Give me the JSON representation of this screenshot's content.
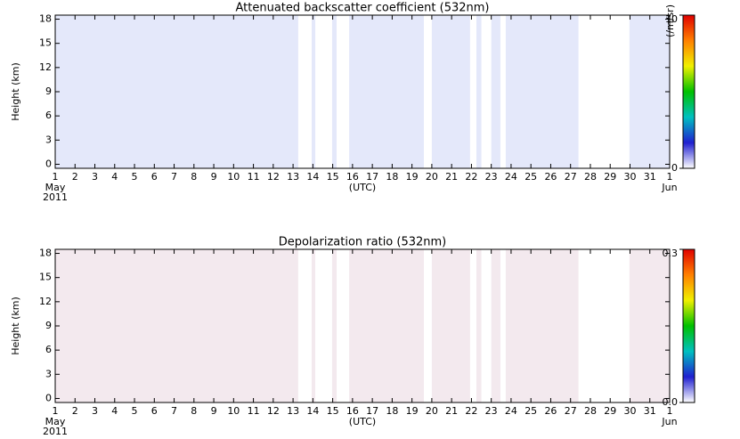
{
  "chart_data": [
    {
      "type": "heatmap",
      "title": "Attenuated backscatter coefficient (532nm)",
      "ylabel": "Height (km)",
      "xlabel": "(UTC)",
      "start_month": "May",
      "start_year": "2011",
      "end_month": "Jun",
      "xlim": [
        1,
        32
      ],
      "xticks": [
        1,
        2,
        3,
        4,
        5,
        6,
        7,
        8,
        9,
        10,
        11,
        12,
        13,
        14,
        15,
        16,
        17,
        18,
        19,
        20,
        21,
        22,
        23,
        24,
        25,
        26,
        27,
        28,
        29,
        30,
        31,
        {
          "value": 32,
          "label": "1"
        }
      ],
      "ylim": [
        -0.5,
        18.5
      ],
      "yticks": [
        0,
        3,
        6,
        9,
        12,
        15,
        18
      ],
      "colorbar_label": "(/m/sr)",
      "clim": [
        0,
        10
      ],
      "cticks": [
        0,
        10
      ],
      "colormap": [
        "#ffffff",
        "#2020d0",
        "#00c0c0",
        "#00c000",
        "#f0f000",
        "#ff8000",
        "#e00000"
      ],
      "fill_color": "#e4e8fa",
      "gaps": [
        [
          13.26,
          13.94
        ],
        [
          14.12,
          14.97
        ],
        [
          15.2,
          15.83
        ],
        [
          19.6,
          20.0
        ],
        [
          21.93,
          22.25
        ],
        [
          22.5,
          23.0
        ],
        [
          23.46,
          23.73
        ],
        [
          27.4,
          29.97
        ]
      ]
    },
    {
      "type": "heatmap",
      "title": "Depolarization ratio (532nm)",
      "ylabel": "Height (km)",
      "xlabel": "(UTC)",
      "start_month": "May",
      "start_year": "2011",
      "end_month": "Jun",
      "xlim": [
        1,
        32
      ],
      "xticks": [
        1,
        2,
        3,
        4,
        5,
        6,
        7,
        8,
        9,
        10,
        11,
        12,
        13,
        14,
        15,
        16,
        17,
        18,
        19,
        20,
        21,
        22,
        23,
        24,
        25,
        26,
        27,
        28,
        29,
        30,
        31,
        {
          "value": 32,
          "label": "1"
        }
      ],
      "ylim": [
        -0.5,
        18.5
      ],
      "yticks": [
        0,
        3,
        6,
        9,
        12,
        15,
        18
      ],
      "clim": [
        0,
        0.3
      ],
      "cticks": [
        {
          "value": 0,
          "label": "0.0"
        },
        0.3
      ],
      "colormap": [
        "#ffffff",
        "#2020d0",
        "#00c0c0",
        "#00c000",
        "#f0f000",
        "#ff8000",
        "#e00000"
      ],
      "fill_color": "#f3e9ee",
      "gaps": [
        [
          13.26,
          13.94
        ],
        [
          14.12,
          14.97
        ],
        [
          15.2,
          15.83
        ],
        [
          19.6,
          20.0
        ],
        [
          21.93,
          22.25
        ],
        [
          22.5,
          23.0
        ],
        [
          23.46,
          23.73
        ],
        [
          27.4,
          29.97
        ]
      ]
    }
  ]
}
